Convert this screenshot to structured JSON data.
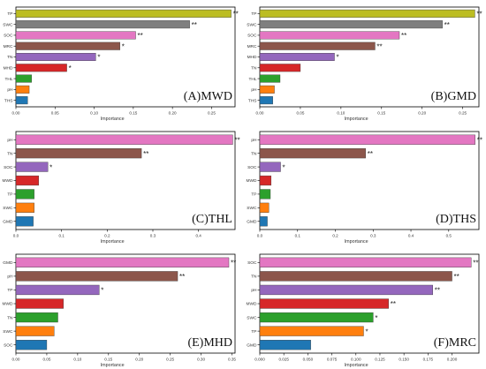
{
  "colors": {
    "TP": "#bcbd22",
    "SWC": "#7f7f7f",
    "SOC": "#e377c2",
    "MRC": "#8c564b",
    "TN": "#9467bd",
    "MHD": "#d62728",
    "THL": "#2ca02c",
    "pH": "#ff7f0e",
    "THS": "#1f77b4",
    "GMD": "#17becf",
    "MWD": "#d62728",
    "axis": "#000000",
    "label": "#333333"
  },
  "chart_data": [
    {
      "type": "bar",
      "orientation": "horizontal",
      "panel_label": "(A)MWD",
      "xlabel": "Importance",
      "xlim": [
        0,
        0.28
      ],
      "xticks": [
        "0.00",
        "0.05",
        "0.10",
        "0.15",
        "0.20",
        "0.25"
      ],
      "tick_values": [
        0,
        0.05,
        0.1,
        0.15,
        0.2,
        0.25
      ],
      "bars": [
        {
          "label": "TP",
          "value": 0.275,
          "sig": "**",
          "color": "#bcbd22"
        },
        {
          "label": "SWC",
          "value": 0.222,
          "sig": "**",
          "color": "#7f7f7f"
        },
        {
          "label": "SOC",
          "value": 0.153,
          "sig": "**",
          "color": "#e377c2"
        },
        {
          "label": "MRC",
          "value": 0.133,
          "sig": "*",
          "color": "#8c564b"
        },
        {
          "label": "TN",
          "value": 0.102,
          "sig": "*",
          "color": "#9467bd"
        },
        {
          "label": "MHD",
          "value": 0.065,
          "sig": "*",
          "color": "#d62728"
        },
        {
          "label": "THL",
          "value": 0.02,
          "sig": "",
          "color": "#2ca02c"
        },
        {
          "label": "pH",
          "value": 0.017,
          "sig": "",
          "color": "#ff7f0e"
        },
        {
          "label": "THS",
          "value": 0.015,
          "sig": "",
          "color": "#1f77b4"
        }
      ]
    },
    {
      "type": "bar",
      "orientation": "horizontal",
      "panel_label": "(B)GMD",
      "xlabel": "Importance",
      "xlim": [
        0,
        0.27
      ],
      "xticks": [
        "0.00",
        "0.05",
        "0.10",
        "0.15",
        "0.20",
        "0.25"
      ],
      "tick_values": [
        0,
        0.05,
        0.1,
        0.15,
        0.2,
        0.25
      ],
      "bars": [
        {
          "label": "TP",
          "value": 0.265,
          "sig": "**",
          "color": "#bcbd22"
        },
        {
          "label": "SWC",
          "value": 0.225,
          "sig": "**",
          "color": "#7f7f7f"
        },
        {
          "label": "SOC",
          "value": 0.172,
          "sig": "**",
          "color": "#e377c2"
        },
        {
          "label": "MRC",
          "value": 0.142,
          "sig": "**",
          "color": "#8c564b"
        },
        {
          "label": "MHD",
          "value": 0.092,
          "sig": "*",
          "color": "#9467bd"
        },
        {
          "label": "TN",
          "value": 0.05,
          "sig": "",
          "color": "#d62728"
        },
        {
          "label": "THL",
          "value": 0.025,
          "sig": "",
          "color": "#2ca02c"
        },
        {
          "label": "pH",
          "value": 0.018,
          "sig": "",
          "color": "#ff7f0e"
        },
        {
          "label": "THS",
          "value": 0.016,
          "sig": "",
          "color": "#1f77b4"
        }
      ]
    },
    {
      "type": "bar",
      "orientation": "horizontal",
      "panel_label": "(C)THL",
      "xlabel": "Importance",
      "xlim": [
        0,
        0.48
      ],
      "xticks": [
        "0.0",
        "0.1",
        "0.2",
        "0.3",
        "0.4"
      ],
      "tick_values": [
        0,
        0.1,
        0.2,
        0.3,
        0.4
      ],
      "bars": [
        {
          "label": "pH",
          "value": 0.475,
          "sig": "**",
          "color": "#e377c2"
        },
        {
          "label": "TN",
          "value": 0.275,
          "sig": "**",
          "color": "#8c564b"
        },
        {
          "label": "SOC",
          "value": 0.07,
          "sig": "*",
          "color": "#9467bd"
        },
        {
          "label": "MWD",
          "value": 0.05,
          "sig": "",
          "color": "#d62728"
        },
        {
          "label": "TP",
          "value": 0.04,
          "sig": "",
          "color": "#2ca02c"
        },
        {
          "label": "SWC",
          "value": 0.04,
          "sig": "",
          "color": "#ff7f0e"
        },
        {
          "label": "GMD",
          "value": 0.038,
          "sig": "",
          "color": "#1f77b4"
        }
      ]
    },
    {
      "type": "bar",
      "orientation": "horizontal",
      "panel_label": "(D)THS",
      "xlabel": "Importance",
      "xlim": [
        0,
        0.58
      ],
      "xticks": [
        "0.0",
        "0.1",
        "0.2",
        "0.3",
        "0.4",
        "0.5"
      ],
      "tick_values": [
        0,
        0.1,
        0.2,
        0.3,
        0.4,
        0.5
      ],
      "bars": [
        {
          "label": "pH",
          "value": 0.57,
          "sig": "**",
          "color": "#e377c2"
        },
        {
          "label": "TN",
          "value": 0.28,
          "sig": "**",
          "color": "#8c564b"
        },
        {
          "label": "SOC",
          "value": 0.055,
          "sig": "*",
          "color": "#9467bd"
        },
        {
          "label": "MWD",
          "value": 0.03,
          "sig": "",
          "color": "#d62728"
        },
        {
          "label": "TP",
          "value": 0.028,
          "sig": "",
          "color": "#2ca02c"
        },
        {
          "label": "SWC",
          "value": 0.024,
          "sig": "",
          "color": "#ff7f0e"
        },
        {
          "label": "GMD",
          "value": 0.02,
          "sig": "",
          "color": "#1f77b4"
        }
      ]
    },
    {
      "type": "bar",
      "orientation": "horizontal",
      "panel_label": "(E)MHD",
      "xlabel": "Importance",
      "xlim": [
        0,
        0.355
      ],
      "xticks": [
        "0.00",
        "0.05",
        "0.10",
        "0.15",
        "0.20",
        "0.25",
        "0.30",
        "0.35"
      ],
      "tick_values": [
        0,
        0.05,
        0.1,
        0.15,
        0.2,
        0.25,
        0.3,
        0.35
      ],
      "bars": [
        {
          "label": "GMD",
          "value": 0.345,
          "sig": "**",
          "color": "#e377c2"
        },
        {
          "label": "pH",
          "value": 0.262,
          "sig": "**",
          "color": "#8c564b"
        },
        {
          "label": "TP",
          "value": 0.135,
          "sig": "*",
          "color": "#9467bd"
        },
        {
          "label": "MWD",
          "value": 0.077,
          "sig": "",
          "color": "#d62728"
        },
        {
          "label": "TN",
          "value": 0.068,
          "sig": "",
          "color": "#2ca02c"
        },
        {
          "label": "SWC",
          "value": 0.062,
          "sig": "",
          "color": "#ff7f0e"
        },
        {
          "label": "SOC",
          "value": 0.05,
          "sig": "",
          "color": "#1f77b4"
        }
      ]
    },
    {
      "type": "bar",
      "orientation": "horizontal",
      "panel_label": "(F)MRC",
      "xlabel": "Importance",
      "xlim": [
        0,
        0.228
      ],
      "xticks": [
        "0.000",
        "0.025",
        "0.050",
        "0.075",
        "0.100",
        "0.125",
        "0.150",
        "0.175",
        "0.200"
      ],
      "tick_values": [
        0,
        0.025,
        0.05,
        0.075,
        0.1,
        0.125,
        0.15,
        0.175,
        0.2
      ],
      "bars": [
        {
          "label": "SOC",
          "value": 0.22,
          "sig": "**",
          "color": "#e377c2"
        },
        {
          "label": "TN",
          "value": 0.2,
          "sig": "**",
          "color": "#8c564b"
        },
        {
          "label": "pH",
          "value": 0.18,
          "sig": "**",
          "color": "#9467bd"
        },
        {
          "label": "MWD",
          "value": 0.134,
          "sig": "**",
          "color": "#d62728"
        },
        {
          "label": "SWC",
          "value": 0.118,
          "sig": "*",
          "color": "#2ca02c"
        },
        {
          "label": "TP",
          "value": 0.108,
          "sig": "*",
          "color": "#ff7f0e"
        },
        {
          "label": "GMD",
          "value": 0.053,
          "sig": "",
          "color": "#1f77b4"
        }
      ]
    }
  ]
}
